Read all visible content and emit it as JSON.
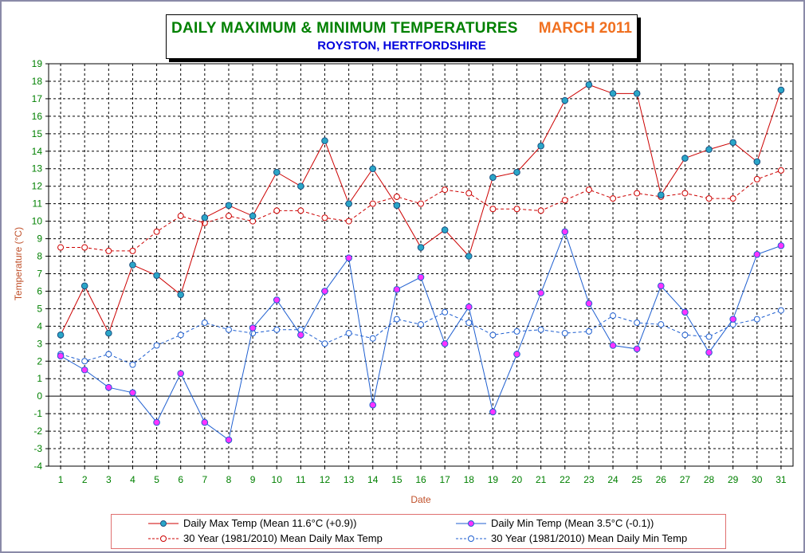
{
  "title": {
    "main": "DAILY MAXIMUM &  MINIMUM  TEMPERATURES",
    "period": "MARCH 2011",
    "location": "ROYSTON, HERTFORDSHIRE"
  },
  "colors": {
    "grid": "#000000",
    "title_green": "#008000",
    "title_orange": "#f07020",
    "title_blue": "#0000dd",
    "axis_label": "#c0502a",
    "tick_label": "#008000",
    "max_line": "#cc0000",
    "min_line": "#1f5fd0",
    "max_marker": "#2aa6c8",
    "min_marker": "#ff33ff"
  },
  "chart_data": {
    "type": "line",
    "xlabel": "Date",
    "ylabel": "Temperature (°C)",
    "xlim": [
      1,
      31
    ],
    "ylim": [
      -4,
      19
    ],
    "grid": true,
    "legend_position": "bottom",
    "x": [
      1,
      2,
      3,
      4,
      5,
      6,
      7,
      8,
      9,
      10,
      11,
      12,
      13,
      14,
      15,
      16,
      17,
      18,
      19,
      20,
      21,
      22,
      23,
      24,
      25,
      26,
      27,
      28,
      29,
      30,
      31
    ],
    "y_ticks": [
      -4,
      -3,
      -2,
      -1,
      0,
      1,
      2,
      3,
      4,
      5,
      6,
      7,
      8,
      9,
      10,
      11,
      12,
      13,
      14,
      15,
      16,
      17,
      18,
      19
    ],
    "series": [
      {
        "name": "Daily Max Temp (Mean 11.6°C (+0.9))",
        "color": "#cc0000",
        "style": "solid",
        "marker": "filled-cyan",
        "values": [
          3.5,
          6.3,
          3.6,
          7.5,
          6.9,
          5.8,
          10.2,
          10.9,
          10.3,
          12.8,
          12.0,
          14.6,
          11.0,
          13.0,
          10.9,
          8.5,
          9.5,
          8.0,
          12.5,
          12.8,
          14.3,
          16.9,
          17.8,
          17.3,
          17.3,
          11.5,
          13.6,
          14.1,
          14.5,
          13.4,
          17.5
        ]
      },
      {
        "name": "Daily Min Temp (Mean 3.5°C (-0.1))",
        "color": "#1f5fd0",
        "style": "solid",
        "marker": "filled-magenta",
        "values": [
          2.3,
          1.5,
          0.5,
          0.2,
          -1.5,
          1.3,
          -1.5,
          -2.5,
          3.9,
          5.5,
          3.5,
          6.0,
          7.9,
          -0.5,
          6.1,
          6.8,
          3.0,
          5.1,
          -0.9,
          2.4,
          5.9,
          9.4,
          5.3,
          2.9,
          2.7,
          6.3,
          4.8,
          2.5,
          4.4,
          8.1,
          8.6
        ]
      },
      {
        "name": "30 Year (1981/2010) Mean Daily Max Temp",
        "color": "#cc0000",
        "style": "dashed",
        "marker": "open-circle",
        "values": [
          8.5,
          8.5,
          8.3,
          8.3,
          9.4,
          10.3,
          9.9,
          10.3,
          10.0,
          10.6,
          10.6,
          10.2,
          10.0,
          11.0,
          11.4,
          11.0,
          11.8,
          11.6,
          10.7,
          10.7,
          10.6,
          11.2,
          11.8,
          11.3,
          11.6,
          11.4,
          11.6,
          11.3,
          11.3,
          12.4,
          12.9
        ]
      },
      {
        "name": "30 Year (1981/2010) Mean Daily Min Temp",
        "color": "#1f5fd0",
        "style": "dashed",
        "marker": "open-circle",
        "values": [
          2.4,
          2.0,
          2.4,
          1.8,
          2.9,
          3.5,
          4.2,
          3.8,
          3.6,
          3.8,
          3.8,
          3.0,
          3.6,
          3.3,
          4.4,
          4.1,
          4.8,
          4.2,
          3.5,
          3.7,
          3.8,
          3.6,
          3.7,
          4.6,
          4.2,
          4.1,
          3.5,
          3.4,
          4.1,
          4.4,
          4.9
        ]
      }
    ]
  },
  "legend": [
    {
      "label": "Daily Max Temp (Mean 11.6°C (+0.9))"
    },
    {
      "label": "Daily Min Temp (Mean 3.5°C (-0.1))"
    },
    {
      "label": "30 Year (1981/2010) Mean Daily Max Temp"
    },
    {
      "label": "30 Year (1981/2010) Mean Daily Min Temp"
    }
  ]
}
